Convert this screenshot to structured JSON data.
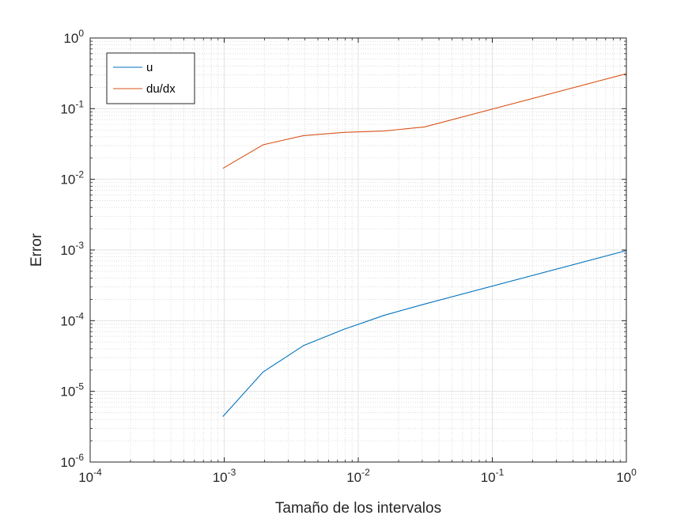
{
  "chart_data": {
    "type": "line",
    "title": "",
    "xlabel": "Tamaño de los intervalos",
    "ylabel": "Error",
    "xscale": "log",
    "yscale": "log",
    "xlim": [
      0.0001,
      1
    ],
    "ylim": [
      1e-06,
      1
    ],
    "x_ticks": [
      {
        "value": 0.0001,
        "base": "10",
        "exp": "-4"
      },
      {
        "value": 0.001,
        "base": "10",
        "exp": "-3"
      },
      {
        "value": 0.01,
        "base": "10",
        "exp": "-2"
      },
      {
        "value": 0.1,
        "base": "10",
        "exp": "-1"
      },
      {
        "value": 1,
        "base": "10",
        "exp": "0"
      }
    ],
    "y_ticks": [
      {
        "value": 1e-06,
        "base": "10",
        "exp": "-6"
      },
      {
        "value": 1e-05,
        "base": "10",
        "exp": "-5"
      },
      {
        "value": 0.0001,
        "base": "10",
        "exp": "-4"
      },
      {
        "value": 0.001,
        "base": "10",
        "exp": "-3"
      },
      {
        "value": 0.01,
        "base": "10",
        "exp": "-2"
      },
      {
        "value": 0.1,
        "base": "10",
        "exp": "-1"
      },
      {
        "value": 1,
        "base": "10",
        "exp": "0"
      }
    ],
    "grid": true,
    "minor_grid": true,
    "legend_position": "top-left",
    "series": [
      {
        "name": "u",
        "color": "#0072BD",
        "x": [
          0.000977,
          0.00195,
          0.00391,
          0.00781,
          0.0156,
          0.03125,
          1
        ],
        "y": [
          4.4e-06,
          1.88e-05,
          4.45e-05,
          7.55e-05,
          0.000119,
          0.000172,
          0.00098
        ]
      },
      {
        "name": "du/dx",
        "color": "#D95319",
        "x": [
          0.000977,
          0.00195,
          0.00391,
          0.00781,
          0.0156,
          0.03125,
          1
        ],
        "y": [
          0.0143,
          0.0308,
          0.0415,
          0.0462,
          0.0483,
          0.0551,
          0.312
        ]
      }
    ]
  }
}
